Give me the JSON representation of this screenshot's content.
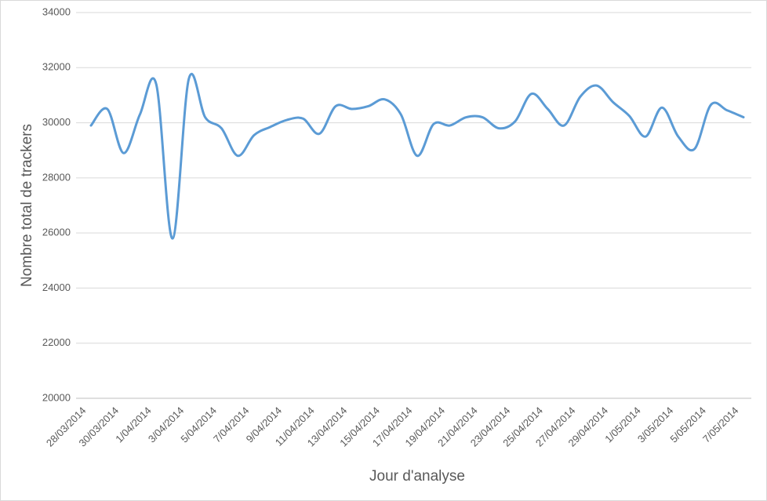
{
  "chart_data": {
    "type": "line",
    "x_label": "Jour d'analyse",
    "y_label": "Nombre total de trackers",
    "categories": [
      "28/03/2014",
      null,
      "30/03/2014",
      null,
      "1/04/2014",
      null,
      "3/04/2014",
      null,
      "5/04/2014",
      null,
      "7/04/2014",
      null,
      "9/04/2014",
      null,
      "11/04/2014",
      null,
      "13/04/2014",
      null,
      "15/04/2014",
      null,
      "17/04/2014",
      null,
      "19/04/2014",
      null,
      "21/04/2014",
      null,
      "23/04/2014",
      null,
      "25/04/2014",
      null,
      "27/04/2014",
      null,
      "29/04/2014",
      null,
      "1/05/2014",
      null,
      "3/05/2014",
      null,
      "5/05/2014",
      null,
      "7/05/2014"
    ],
    "values": [
      29900,
      30500,
      28900,
      30300,
      31400,
      25800,
      31600,
      30200,
      29800,
      28800,
      29550,
      29850,
      30100,
      30150,
      29600,
      30600,
      30500,
      30600,
      30850,
      30300,
      28800,
      29950,
      29900,
      30200,
      30200,
      29800,
      30050,
      31050,
      30500,
      29900,
      30950,
      31350,
      30750,
      30250,
      29500,
      30550,
      29500,
      29050,
      30650,
      30450,
      30200
    ],
    "color": "#5b9bd5",
    "smooth": true,
    "ylim": [
      20000,
      34000
    ],
    "yticks": [
      20000,
      22000,
      24000,
      26000,
      28000,
      30000,
      32000,
      34000
    ],
    "grid": true
  }
}
